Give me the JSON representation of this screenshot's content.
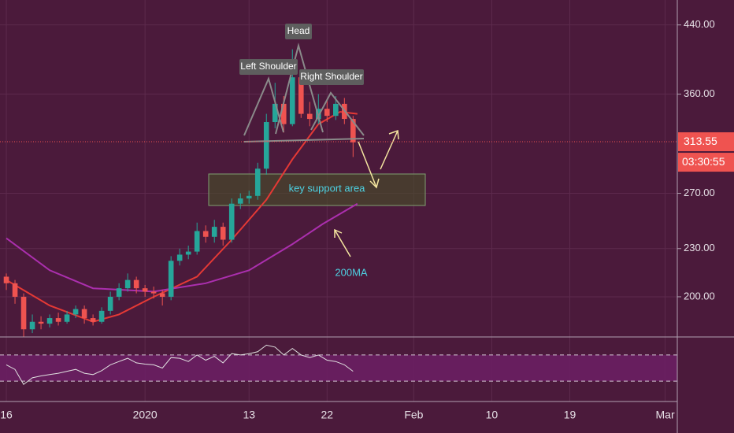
{
  "chart_data": {
    "type": "candlestick",
    "log_scale": true,
    "grid": true,
    "x": [
      0,
      1,
      2,
      3,
      4,
      5,
      6,
      7,
      8,
      9,
      10,
      11,
      12,
      13,
      14,
      15,
      16,
      17,
      18,
      19,
      20,
      21,
      22,
      23,
      24,
      25,
      26,
      27,
      28,
      29,
      30,
      31,
      32,
      33,
      34,
      35,
      36,
      37,
      38,
      39,
      40
    ],
    "open": [
      212,
      208,
      200,
      182,
      186,
      185,
      188,
      186,
      190,
      193,
      188,
      186,
      192,
      200,
      205,
      210,
      205,
      203,
      202,
      200,
      222,
      226,
      228,
      242,
      238,
      245,
      236,
      262,
      266,
      268,
      290,
      332,
      350,
      330,
      378,
      340,
      335,
      345,
      338,
      350,
      335
    ],
    "high": [
      214,
      210,
      202,
      190,
      189,
      190,
      191,
      192,
      195,
      195,
      190,
      194,
      203,
      208,
      214,
      212,
      207,
      206,
      204,
      225,
      230,
      232,
      248,
      246,
      250,
      248,
      266,
      270,
      272,
      295,
      340,
      372,
      358,
      410,
      385,
      352,
      360,
      355,
      358,
      356,
      338
    ],
    "low": [
      204,
      196,
      178,
      180,
      182,
      183,
      184,
      185,
      188,
      185,
      184,
      185,
      190,
      198,
      203,
      202,
      200,
      199,
      195,
      198,
      219,
      223,
      226,
      234,
      234,
      232,
      234,
      258,
      262,
      265,
      285,
      326,
      322,
      328,
      336,
      328,
      330,
      332,
      334,
      330,
      300
    ],
    "close": [
      208,
      200,
      182,
      186,
      185,
      188,
      186,
      190,
      193,
      188,
      186,
      192,
      200,
      205,
      210,
      205,
      203,
      202,
      200,
      222,
      226,
      228,
      242,
      238,
      245,
      236,
      262,
      266,
      268,
      290,
      332,
      350,
      330,
      378,
      340,
      335,
      345,
      338,
      350,
      335,
      313
    ],
    "up_color": "#26a69a",
    "down_color": "#ef5350",
    "lines": [
      {
        "color": "#e53935",
        "x": [
          0,
          5,
          10,
          13,
          17,
          22,
          26,
          30,
          33,
          36,
          38.5,
          40.5
        ],
        "values": [
          210,
          195,
          186,
          190,
          200,
          212,
          236,
          265,
          298,
          330,
          342,
          340
        ]
      },
      {
        "color": "#ab2fae",
        "x": [
          0,
          5,
          10,
          17,
          23,
          28,
          33,
          36.5,
          40.5
        ],
        "values": [
          237,
          216,
          205,
          203,
          208,
          216,
          233,
          247,
          262
        ]
      }
    ],
    "rsi": {
      "color": "#e0e0e0",
      "values": [
        55,
        48,
        25,
        35,
        38,
        40,
        42,
        45,
        48,
        42,
        40,
        46,
        55,
        60,
        65,
        58,
        56,
        55,
        50,
        66,
        65,
        60,
        70,
        62,
        68,
        58,
        72,
        70,
        72,
        75,
        85,
        82,
        70,
        80,
        70,
        66,
        70,
        62,
        60,
        55,
        45
      ],
      "ylim": [
        0,
        100
      ],
      "bands": [
        30,
        70
      ]
    },
    "last_price": 313.55,
    "countdown": "03:30:55",
    "ylim": [
      178,
      473
    ],
    "yticks": [
      {
        "value": 440,
        "label": "440.00"
      },
      {
        "value": 360,
        "label": "360.00"
      },
      {
        "value": 270,
        "label": "270.00"
      },
      {
        "value": 230,
        "label": "230.00"
      },
      {
        "value": 200,
        "label": "200.00"
      }
    ],
    "xlim": [
      -0.73,
      77.4
    ],
    "xticks": [
      {
        "value": 0,
        "label": "16"
      },
      {
        "value": 16,
        "label": "2020"
      },
      {
        "value": 28,
        "label": "13"
      },
      {
        "value": 37,
        "label": "22"
      },
      {
        "value": 47,
        "label": "Feb"
      },
      {
        "value": 56,
        "label": "10"
      },
      {
        "value": 65,
        "label": "19"
      },
      {
        "value": 76,
        "label": "Mar"
      }
    ],
    "annotations": [
      "Head",
      "Left Shoulder",
      "Right Shoulder",
      "key support area",
      "200MA"
    ]
  }
}
